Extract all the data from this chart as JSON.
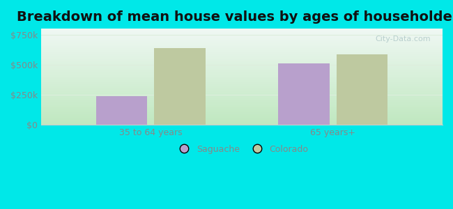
{
  "title": "Breakdown of mean house values by ages of householders",
  "categories": [
    "35 to 64 years",
    "65 years+"
  ],
  "saguache_values": [
    237500,
    512500
  ],
  "colorado_values": [
    637500,
    587500
  ],
  "saguache_color": "#b8a0cc",
  "colorado_color": "#bec9a0",
  "background_color": "#00e8e8",
  "plot_bg_gradient_bottom": "#c8e8c0",
  "plot_bg_gradient_top": "#eef8f0",
  "yticks": [
    0,
    250000,
    500000,
    750000
  ],
  "ytick_labels": [
    "$0",
    "$250k",
    "$500k",
    "$750k"
  ],
  "ylim": [
    0,
    800000
  ],
  "bar_width": 0.28,
  "legend_saguache": "Saguache",
  "legend_colorado": "Colorado",
  "title_fontsize": 14,
  "axis_fontsize": 9,
  "legend_fontsize": 9,
  "grid_color": "#e0ece0",
  "tick_color": "#888888",
  "watermark": "City-Data.com"
}
